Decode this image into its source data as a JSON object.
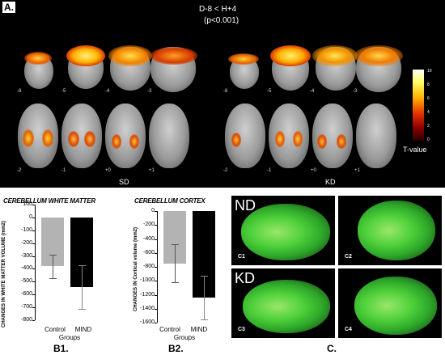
{
  "panel_a": {
    "label": "A.",
    "contrast": "D-8 < H+4",
    "pvalue": "(p<0.001)",
    "top_slices_left": [
      "-8",
      "-5",
      "-4",
      "-3"
    ],
    "top_slices_right": [
      "-8",
      "-5",
      "-4",
      "-3"
    ],
    "bottom_slices_left": [
      "-2",
      "-1",
      "+0",
      "+1"
    ],
    "bottom_slices_right": [
      "-2",
      "-1",
      "+0",
      "+1"
    ],
    "group_left": "SD",
    "group_right": "KD",
    "colorbar_ticks": [
      "10",
      "8",
      "6",
      "4",
      "2",
      "0"
    ],
    "colorbar_label": "T-value"
  },
  "chart_data": [
    {
      "type": "bar",
      "title": "CEREBELLUM WHITE MATTER",
      "ylabel": "CHANGES IN  WHITE MATTER VOLUME (mm2)",
      "xlabel": "Groups",
      "categories": [
        "Control",
        "MIND"
      ],
      "values": [
        -380,
        -540
      ],
      "errors": [
        90,
        170
      ],
      "ylim": [
        -800,
        100
      ],
      "yticks": [
        "100",
        "0",
        "-100",
        "-200",
        "-300",
        "-400",
        "-500",
        "-600",
        "-700",
        "-800"
      ],
      "colors": [
        "#b3b3b3",
        "#000000"
      ],
      "sublabel": "B1."
    },
    {
      "type": "bar",
      "title": "CEREBELLUM CORTEX",
      "ylabel": "CHANGES IN  Cortical volume (mm2)",
      "xlabel": "Groups",
      "categories": [
        "Control",
        "MIND"
      ],
      "values": [
        -750,
        -1240
      ],
      "errors": [
        270,
        310
      ],
      "ylim": [
        -1600,
        0
      ],
      "yticks": [
        "0",
        "-200",
        "-400",
        "-600",
        "-800",
        "-1000",
        "-1200",
        "-1400",
        "-1600"
      ],
      "colors": [
        "#b3b3b3",
        "#000000"
      ],
      "sublabel": "B2."
    }
  ],
  "panel_c": {
    "label": "C.",
    "group_top": "ND",
    "group_bottom": "KD",
    "tiles": [
      "C1",
      "C2",
      "C3",
      "C4"
    ]
  }
}
